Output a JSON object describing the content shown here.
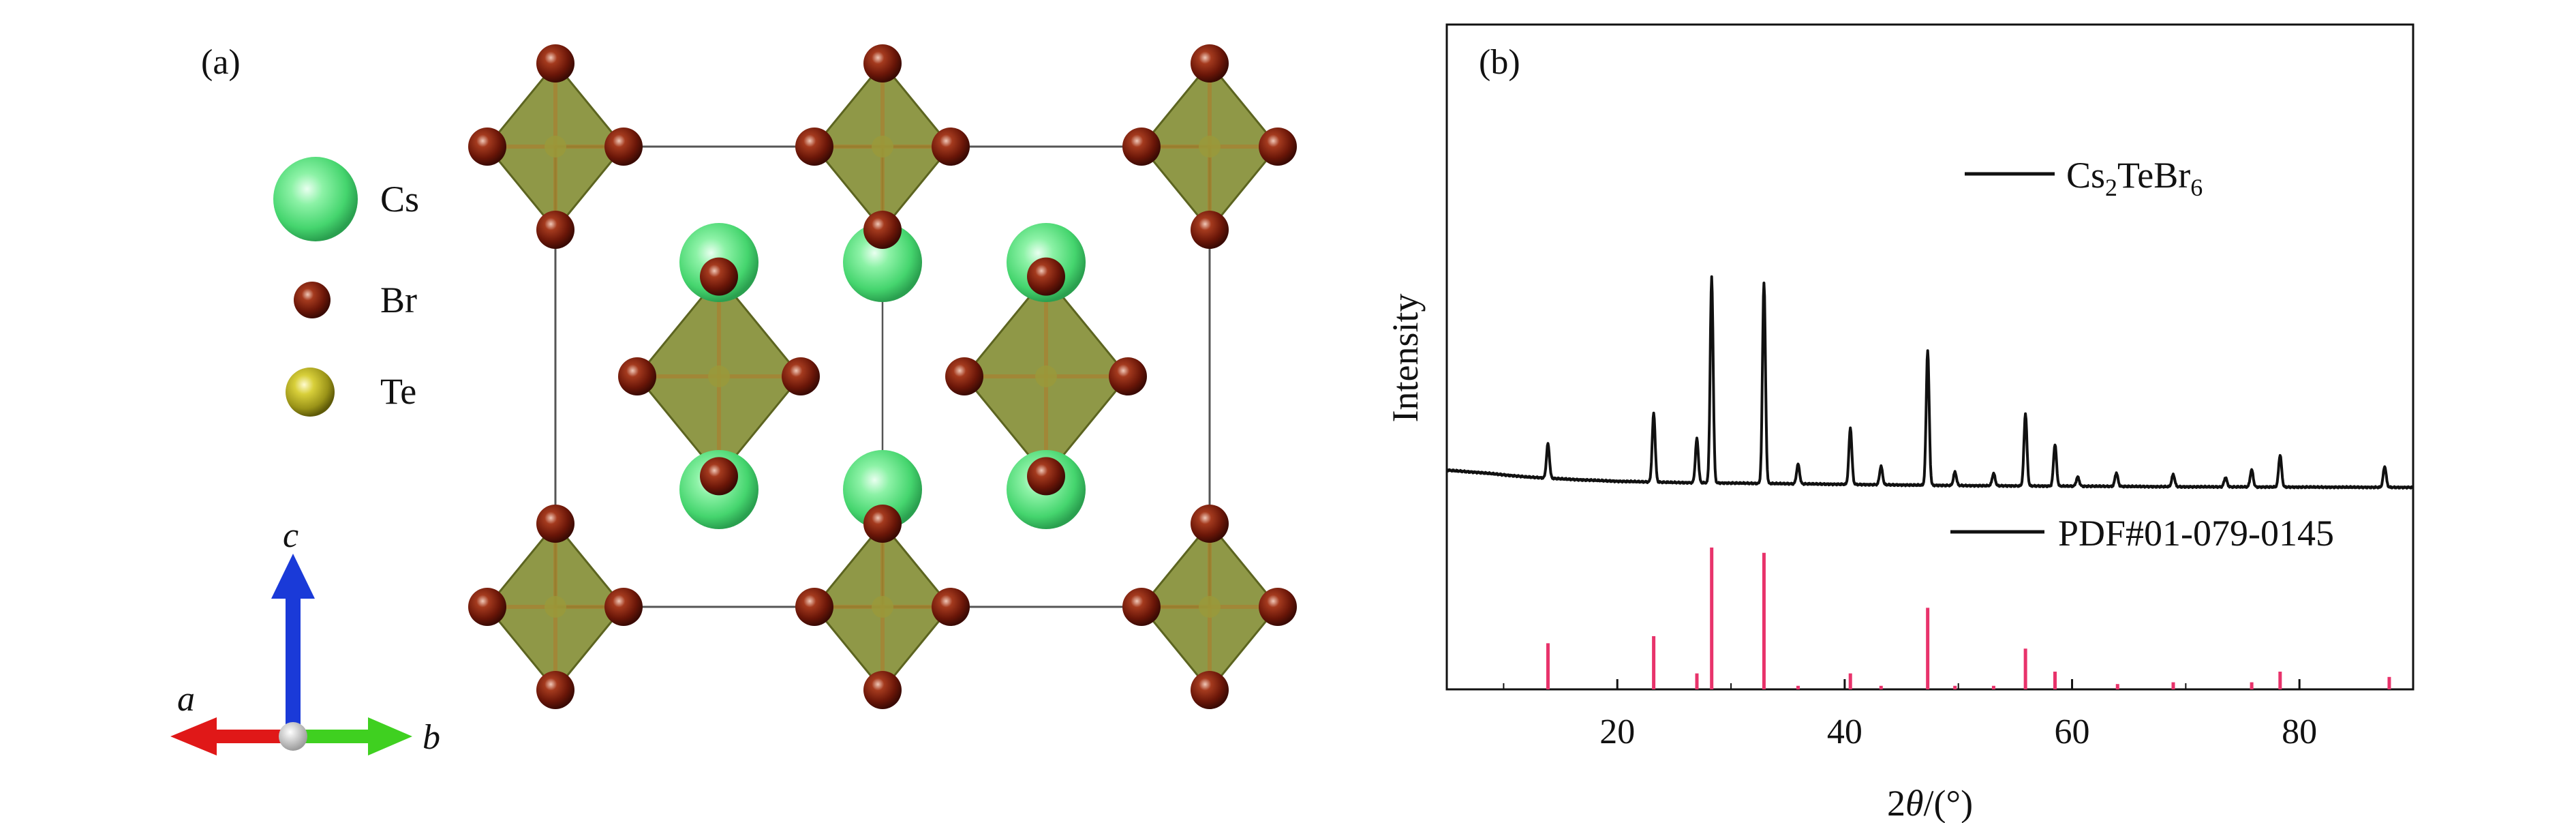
{
  "panel_a": {
    "label": "(a)",
    "legend": [
      {
        "name": "Cs",
        "color": "#4fe07a"
      },
      {
        "name": "Br",
        "color": "#7a1a0a"
      },
      {
        "name": "Te",
        "color": "#c8c22a"
      }
    ],
    "axes": {
      "a": "a",
      "b": "b",
      "c": "c"
    },
    "colors": {
      "octahedron": "#7f8a2e",
      "cs": "#4fe07a",
      "br": "#7a1a0a",
      "axis_a": "#e01818",
      "axis_b": "#3fd020",
      "axis_c": "#1a3ad8"
    }
  },
  "panel_b": {
    "label": "(b)",
    "chart_data": {
      "type": "line",
      "xlabel_prefix": "2",
      "xlabel_theta": "θ",
      "xlabel_suffix": "/(°)",
      "ylabel": "Intensity",
      "xlim": [
        5,
        90
      ],
      "xticks": [
        20,
        40,
        60,
        80
      ],
      "grid": false,
      "series": [
        {
          "name": "Cs2TeBr6",
          "legend_parts": [
            "Cs",
            "2",
            "TeBr",
            "6"
          ],
          "color": "#111111",
          "baseline": [
            [
              5,
              0.56
            ],
            [
              8,
              0.52
            ],
            [
              12,
              0.45
            ],
            [
              16,
              0.41
            ],
            [
              20,
              0.38
            ],
            [
              25,
              0.36
            ],
            [
              30,
              0.35
            ],
            [
              40,
              0.33
            ],
            [
              50,
              0.31
            ],
            [
              60,
              0.3
            ],
            [
              70,
              0.29
            ],
            [
              80,
              0.285
            ],
            [
              90,
              0.28
            ]
          ],
          "peaks": [
            [
              13.9,
              0.56
            ],
            [
              23.2,
              1.12
            ],
            [
              27.0,
              0.72
            ],
            [
              28.3,
              3.35
            ],
            [
              32.9,
              3.28
            ],
            [
              35.9,
              0.32
            ],
            [
              40.5,
              0.92
            ],
            [
              43.2,
              0.3
            ],
            [
              47.3,
              2.2
            ],
            [
              49.7,
              0.22
            ],
            [
              53.1,
              0.2
            ],
            [
              55.9,
              1.18
            ],
            [
              58.5,
              0.68
            ],
            [
              60.5,
              0.15
            ],
            [
              63.9,
              0.22
            ],
            [
              68.9,
              0.2
            ],
            [
              73.5,
              0.15
            ],
            [
              75.8,
              0.28
            ],
            [
              78.3,
              0.52
            ],
            [
              87.5,
              0.34
            ]
          ]
        },
        {
          "name": "PDF#01-079-0145",
          "color": "#e8336b",
          "sticks": [
            [
              13.9,
              0.26
            ],
            [
              23.2,
              0.3
            ],
            [
              27.0,
              0.09
            ],
            [
              28.3,
              0.8
            ],
            [
              32.9,
              0.77
            ],
            [
              35.9,
              0.02
            ],
            [
              40.5,
              0.09
            ],
            [
              43.2,
              0.02
            ],
            [
              47.3,
              0.46
            ],
            [
              49.7,
              0.02
            ],
            [
              53.1,
              0.02
            ],
            [
              55.9,
              0.23
            ],
            [
              58.5,
              0.1
            ],
            [
              64.0,
              0.03
            ],
            [
              68.9,
              0.04
            ],
            [
              75.8,
              0.04
            ],
            [
              78.3,
              0.1
            ],
            [
              87.9,
              0.07
            ]
          ]
        }
      ]
    }
  }
}
